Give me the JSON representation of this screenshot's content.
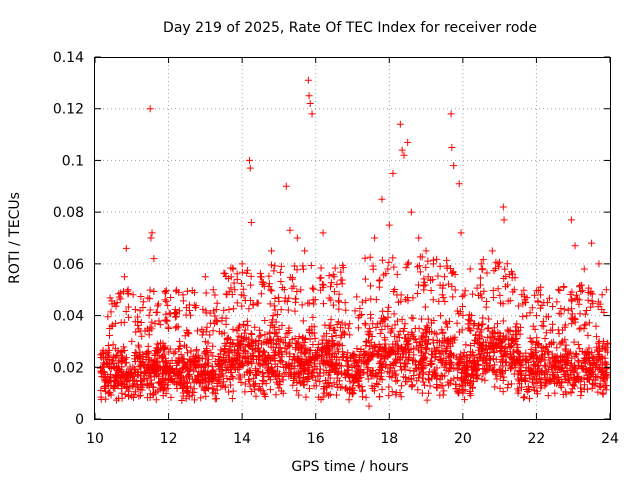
{
  "chart_data": {
    "type": "scatter",
    "title": "Day 219 of 2025, Rate Of TEC Index for receiver rode",
    "xlabel": "GPS time / hours",
    "ylabel": "ROTI / TECUs",
    "xlim": [
      10,
      24
    ],
    "ylim": [
      0,
      0.14
    ],
    "xticks": [
      10,
      12,
      14,
      16,
      18,
      20,
      22,
      24
    ],
    "yticks": [
      0,
      0.02,
      0.04,
      0.06,
      0.08,
      0.1,
      0.12,
      0.14
    ],
    "xtick_labels": [
      "10",
      "12",
      "14",
      "16",
      "18",
      "20",
      "22",
      "24"
    ],
    "ytick_labels": [
      "0",
      "0.02",
      "0.04",
      "0.06",
      "0.08",
      "0.1",
      "0.12",
      "0.14"
    ],
    "grid": true,
    "marker": "+",
    "color": "#ff0000",
    "series": [
      {
        "x": [
          10.2,
          10.4,
          10.6,
          10.8,
          10.85,
          10.9,
          11.0,
          11.3,
          11.5,
          11.52,
          11.55,
          11.6,
          12.0,
          12.3,
          12.7,
          13.0,
          13.5,
          13.8,
          14.0,
          14.2,
          14.22,
          14.25,
          14.5,
          14.8,
          15.2,
          15.3,
          15.5,
          15.7,
          15.8,
          15.82,
          15.85,
          15.9,
          16.2,
          16.5,
          16.8,
          17.2,
          17.45,
          17.6,
          17.8,
          18.0,
          18.1,
          18.3,
          18.35,
          18.4,
          18.5,
          18.6,
          18.8,
          19.0,
          19.2,
          19.5,
          19.68,
          19.7,
          19.75,
          19.9,
          19.95,
          20.2,
          20.5,
          20.8,
          21.1,
          21.12,
          21.4,
          21.7,
          22.0,
          22.3,
          22.6,
          22.95,
          23.05,
          23.3,
          23.5,
          23.7,
          23.9,
          10.3,
          10.5,
          11.1,
          11.8,
          12.5,
          13.2,
          14.6,
          15.0,
          16.0,
          16.3,
          17.0,
          18.9,
          19.3,
          20.0,
          20.6,
          21.5,
          22.5,
          23.2,
          23.8
        ],
        "y": [
          0.02,
          0.035,
          0.045,
          0.055,
          0.066,
          0.05,
          0.03,
          0.025,
          0.12,
          0.07,
          0.072,
          0.062,
          0.035,
          0.03,
          0.044,
          0.055,
          0.042,
          0.05,
          0.06,
          0.1,
          0.097,
          0.076,
          0.055,
          0.065,
          0.09,
          0.073,
          0.07,
          0.065,
          0.131,
          0.125,
          0.122,
          0.118,
          0.072,
          0.055,
          0.045,
          0.04,
          0.005,
          0.07,
          0.085,
          0.075,
          0.095,
          0.114,
          0.104,
          0.102,
          0.107,
          0.08,
          0.07,
          0.065,
          0.06,
          0.055,
          0.118,
          0.105,
          0.098,
          0.091,
          0.072,
          0.058,
          0.06,
          0.065,
          0.082,
          0.077,
          0.05,
          0.045,
          0.04,
          0.045,
          0.05,
          0.077,
          0.067,
          0.058,
          0.068,
          0.06,
          0.05,
          0.015,
          0.012,
          0.018,
          0.012,
          0.01,
          0.015,
          0.01,
          0.012,
          0.015,
          0.01,
          0.012,
          0.01,
          0.012,
          0.01,
          0.015,
          0.01,
          0.01,
          0.012,
          0.01
        ]
      }
    ]
  }
}
